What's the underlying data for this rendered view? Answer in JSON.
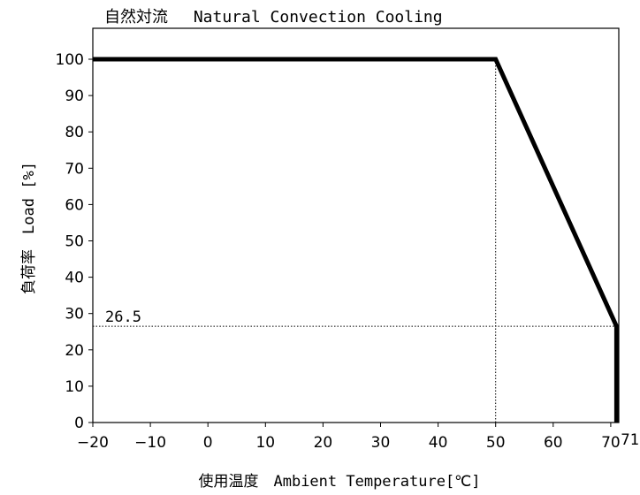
{
  "chart_data": {
    "type": "line",
    "title": "自然対流　 Natural Convection Cooling",
    "xlabel": "使用温度　Ambient Temperature[℃]",
    "ylabel": "負荷率　Load [%]",
    "xlim": [
      -20,
      72
    ],
    "ylim": [
      0,
      100
    ],
    "xticks": [
      -20,
      -10,
      0,
      10,
      20,
      30,
      40,
      50,
      60,
      70
    ],
    "xtick_labels": [
      "−20",
      "−10",
      "0",
      "10",
      "20",
      "30",
      "40",
      "50",
      "60",
      "70"
    ],
    "yticks": [
      0,
      10,
      20,
      30,
      40,
      50,
      60,
      70,
      80,
      90,
      100
    ],
    "ytick_labels": [
      "0",
      "10",
      "20",
      "30",
      "40",
      "50",
      "60",
      "70",
      "80",
      "90",
      "100"
    ],
    "grid": false,
    "series": [
      {
        "x": [
          -20,
          50,
          71,
          71
        ],
        "y": [
          100,
          100,
          26.5,
          0
        ]
      }
    ],
    "reference_lines": [
      {
        "orientation": "vertical",
        "x": 50,
        "y_from": 0,
        "y_to": 100
      },
      {
        "orientation": "horizontal",
        "y": 26.5,
        "x_from": -20,
        "x_to": 71
      }
    ],
    "annotations": [
      {
        "text": "26.5",
        "x": -20,
        "y": 26.5
      },
      {
        "text": "71",
        "x": 71,
        "y": 0
      }
    ]
  }
}
